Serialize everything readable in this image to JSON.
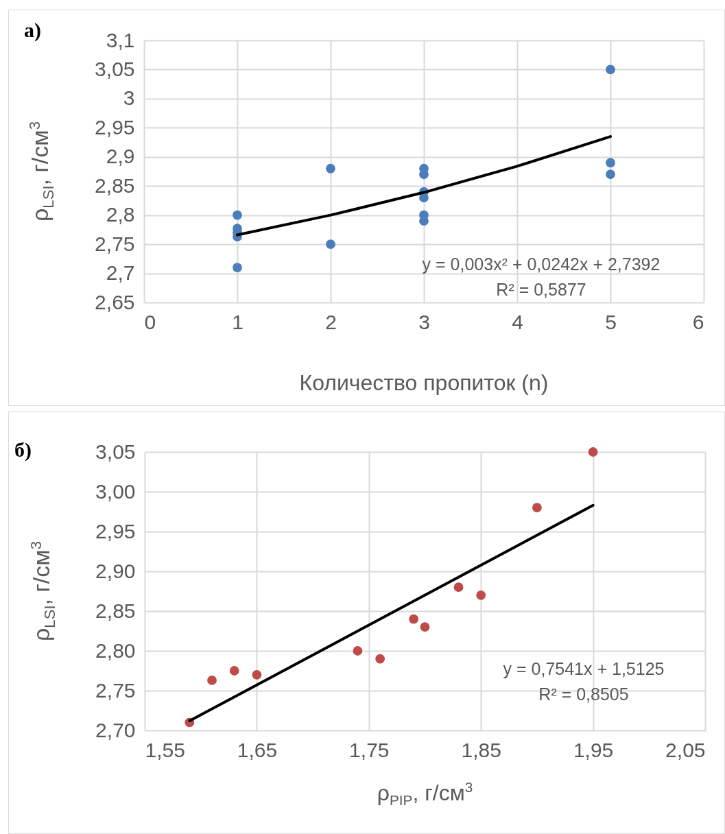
{
  "chart_data": [
    {
      "type": "scatter",
      "title": "а)",
      "xlabel": "Количество пропиток (n)",
      "ylabel": "ρ$_{LSI}$, г/см$^{3}$",
      "xlim": [
        0,
        6
      ],
      "xticks": [
        0,
        1,
        2,
        3,
        4,
        5,
        6
      ],
      "ylim": [
        2.65,
        3.1
      ],
      "yticks": [
        {
          "value": 2.65,
          "label": "2,65"
        },
        {
          "value": 2.7,
          "label": "2,7"
        },
        {
          "value": 2.75,
          "label": "2,75"
        },
        {
          "value": 2.8,
          "label": "2,8"
        },
        {
          "value": 2.85,
          "label": "2,85"
        },
        {
          "value": 2.9,
          "label": "2,9"
        },
        {
          "value": 2.95,
          "label": "2,95"
        },
        3,
        {
          "value": 3.05,
          "label": "3,05"
        },
        {
          "value": 3.1,
          "label": "3,1"
        }
      ],
      "grid": true,
      "series": [
        {
          "marker": "circle",
          "color": "#4a7ebb",
          "x": [
            1,
            1,
            1,
            1,
            1,
            2,
            2,
            3,
            3,
            3,
            3,
            3,
            3,
            5,
            5,
            5
          ],
          "values": [
            2.8,
            2.777,
            2.77,
            2.763,
            2.71,
            2.88,
            2.75,
            2.88,
            2.87,
            2.84,
            2.83,
            2.8,
            2.79,
            3.05,
            2.89,
            2.87
          ]
        },
        {
          "type": "line",
          "color": "#000000",
          "x": [
            1,
            2,
            3,
            4,
            5
          ],
          "values": [
            2.766,
            2.8,
            2.839,
            2.884,
            2.935
          ]
        }
      ],
      "annotations": [
        "y = 0,003x² + 0,0242x + 2,7392",
        "R² = 0,5877"
      ]
    },
    {
      "type": "scatter",
      "title": "б)",
      "xlabel": "ρ$_{PIP}$, г/см$^{3}$",
      "ylabel": "ρ$_{LSI}$, г/см$^{3}$",
      "xlim": [
        1.55,
        2.05
      ],
      "xticks": [
        {
          "value": 1.55,
          "label": "1,55"
        },
        {
          "value": 1.65,
          "label": "1,65"
        },
        {
          "value": 1.75,
          "label": "1,75"
        },
        {
          "value": 1.85,
          "label": "1,85"
        },
        {
          "value": 1.95,
          "label": "1,95"
        },
        {
          "value": 2.05,
          "label": "2,05"
        }
      ],
      "ylim": [
        2.7,
        3.05
      ],
      "yticks": [
        {
          "value": 2.7,
          "label": "2,70"
        },
        {
          "value": 2.75,
          "label": "2,75"
        },
        {
          "value": 2.8,
          "label": "2,80"
        },
        {
          "value": 2.85,
          "label": "2,85"
        },
        {
          "value": 2.9,
          "label": "2,90"
        },
        {
          "value": 2.95,
          "label": "2,95"
        },
        {
          "value": 3.0,
          "label": "3,00"
        },
        {
          "value": 3.05,
          "label": "3,05"
        }
      ],
      "grid": true,
      "series": [
        {
          "marker": "circle",
          "color": "#be4b48",
          "x": [
            1.59,
            1.61,
            1.63,
            1.65,
            1.74,
            1.76,
            1.79,
            1.8,
            1.83,
            1.85,
            1.9,
            1.95
          ],
          "values": [
            2.71,
            2.763,
            2.775,
            2.77,
            2.8,
            2.79,
            2.84,
            2.83,
            2.88,
            2.87,
            2.98,
            3.05
          ]
        },
        {
          "type": "line",
          "color": "#000000",
          "x": [
            1.59,
            1.95
          ],
          "values": [
            2.712,
            2.983
          ]
        }
      ],
      "annotations": [
        "y = 0,7541x + 1,5125",
        "R² = 0,8505"
      ]
    }
  ]
}
